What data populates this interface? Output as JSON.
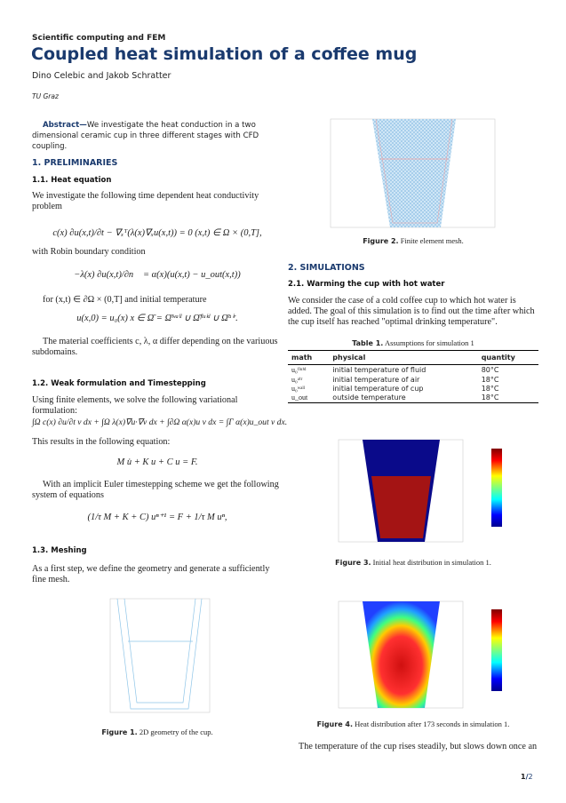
{
  "header": {
    "journal": "Scientific computing and FEM",
    "title": "Coupled heat simulation of a coffee mug",
    "authors": "Dino Celebic and Jakob Schratter",
    "affiliation": "TU Graz"
  },
  "abstract": {
    "label": "Abstract—",
    "text": "We investigate the heat conduction in a two dimensional ceramic cup in three different stages with CFD coupling."
  },
  "s1": {
    "title": "1.  PRELIMINARIES",
    "s11": {
      "title": "1.1.  Heat equation",
      "p1": "We investigate the following time dependent heat conductivity problem",
      "eq1": "c(x) ∂u(x,t)/∂t − ∇ₓᵀ(λ(x)∇ₓu(x,t)) = 0        (x,t) ∈ Ω × (0,T],",
      "p2": "with Robin boundary condition",
      "eq2": "−λ(x) ∂u(x,t)/∂n⃗ = α(x)(u(x,t) − u_out(x,t))",
      "p3": "for (x,t) ∈ ∂Ω × (0,T] and initial temperature",
      "eq3": "u(x,0) = u₀(x)      x ∈ Ω̄ = Ω̄ʷᵃˡˡ ∪ Ω̄ᶠˡᵘⁱᵈ ∪ Ω̄ᵃⁱʳ.",
      "p4": "The material coefficients c, λ, α differ depending on the variuous subdomains."
    },
    "s12": {
      "title": "1.2.  Weak formulation and Timestepping",
      "p1": "Using finite elements, we solve the following variational formulation:",
      "eq1": "∫Ω c(x) ∂u/∂t v dx + ∫Ω λ(x)∇u·∇v dx + ∫∂Ω α(x)u v dx = ∫Γ α(x)u_out v dx.",
      "p2": "This results in the following equation:",
      "eq2": "M u̇ + K u + C u = F.",
      "p3": "With an implicit Euler timestepping scheme we get the following system of equations",
      "eq3": "(1/τ M + K + C) uⁿ⁺¹ = F + 1/τ M uⁿ,"
    },
    "s13": {
      "title": "1.3.  Meshing",
      "p1": "As a first step, we define the geometry and generate a sufficiently fine mesh."
    }
  },
  "fig1": {
    "label": "Figure 1.",
    "caption": "2D geometry of the cup."
  },
  "fig2": {
    "label": "Figure 2.",
    "caption": "Finite element mesh."
  },
  "s2": {
    "title": "2.  SIMULATIONS",
    "s21": {
      "title": "2.1.  Warming the cup with hot water",
      "p1": "We consider the case of a cold coffee cup to which hot water is added. The goal of this simulation is to find out the time after which the cup itself has reached \"optimal drinking temperature\"."
    },
    "table": {
      "label": "Table 1.",
      "caption": "Assumptions for simulation 1",
      "headers": [
        "math",
        "physical",
        "quantity"
      ],
      "rows": [
        [
          "u₀ᶠˡᵘⁱᵈ",
          "initial temperature of fluid",
          "80°C"
        ],
        [
          "u₀ᵃⁱʳ",
          "initial temperature of air",
          "18°C"
        ],
        [
          "u₀ʷᵃˡˡ",
          "initial temperature of cup",
          "18°C"
        ],
        [
          "u_out",
          "outside temperature",
          "18°C"
        ]
      ]
    },
    "p_end": "The temperature of the cup rises steadily, but slows down once an"
  },
  "fig3": {
    "label": "Figure 3.",
    "caption": "Initial heat distribution in simulation 1."
  },
  "fig4": {
    "label": "Figure 4.",
    "caption": "Heat distribution after 173 seconds in simulation 1."
  },
  "page": {
    "current": "1",
    "sep": "/",
    "total": "2"
  },
  "colors": {
    "accent": "#1a3a6e",
    "mesh": "#8ec5e8",
    "hot": "#a01010",
    "cold": "#0a0a8a"
  }
}
